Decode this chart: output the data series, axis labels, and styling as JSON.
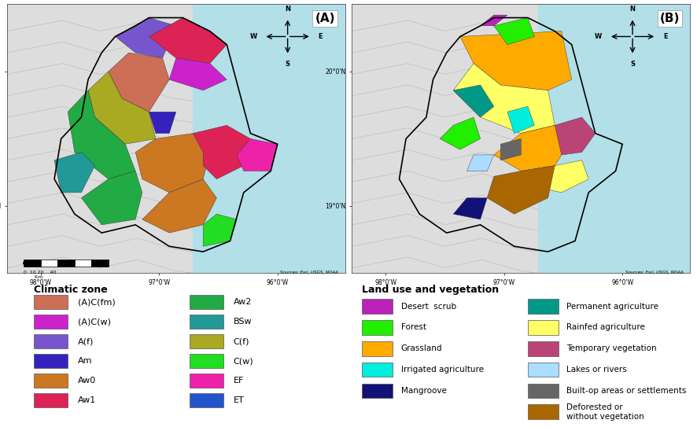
{
  "fig_width": 8.86,
  "fig_height": 5.43,
  "background_color": "#ffffff",
  "map_bg_color": "#b2dfe8",
  "land_bg_color": "#e8e8e8",
  "climatic_zone": {
    "title": "Climatic zone",
    "items": [
      {
        "label": "(A)C(fm)",
        "color": "#cd6e56"
      },
      {
        "label": "(A)C(w)",
        "color": "#cc22cc"
      },
      {
        "label": "A(f)",
        "color": "#7755cc"
      },
      {
        "label": "Am",
        "color": "#3322bb"
      },
      {
        "label": "Aw0",
        "color": "#cc7722"
      },
      {
        "label": "Aw1",
        "color": "#dd2255"
      },
      {
        "label": "Aw2",
        "color": "#22aa44"
      },
      {
        "label": "BSw",
        "color": "#229999"
      },
      {
        "label": "C(f)",
        "color": "#aaaa22"
      },
      {
        "label": "C(w)",
        "color": "#22dd22"
      },
      {
        "label": "EF",
        "color": "#ee22aa"
      },
      {
        "label": "ET",
        "color": "#2255cc"
      }
    ]
  },
  "land_use": {
    "title": "Land use and vegetation",
    "items_left": [
      {
        "label": "Desert  scrub",
        "color": "#bb22bb"
      },
      {
        "label": "Forest",
        "color": "#22ee00"
      },
      {
        "label": "Grassland",
        "color": "#ffaa00"
      },
      {
        "label": "Irrigated agriculture",
        "color": "#00eedd"
      },
      {
        "label": "Mangroove",
        "color": "#111177"
      }
    ],
    "items_right": [
      {
        "label": "Permanent agriculture",
        "color": "#009988"
      },
      {
        "label": "Rainfed agriculture",
        "color": "#ffff66"
      },
      {
        "label": "Temporary vegetation",
        "color": "#bb4477"
      },
      {
        "label": "Lakes or rivers",
        "color": "#aaddff"
      },
      {
        "label": "Built-op areas or settlements",
        "color": "#666666"
      },
      {
        "label": "Deforested or\nwithout vegetation",
        "color": "#aa6600"
      }
    ]
  },
  "panel_A_label": "(A)",
  "panel_B_label": "(B)",
  "scale_bar_label": "0  10 20    40\n        Km",
  "source_text": "Sources: Esri, USGS, NOAA"
}
